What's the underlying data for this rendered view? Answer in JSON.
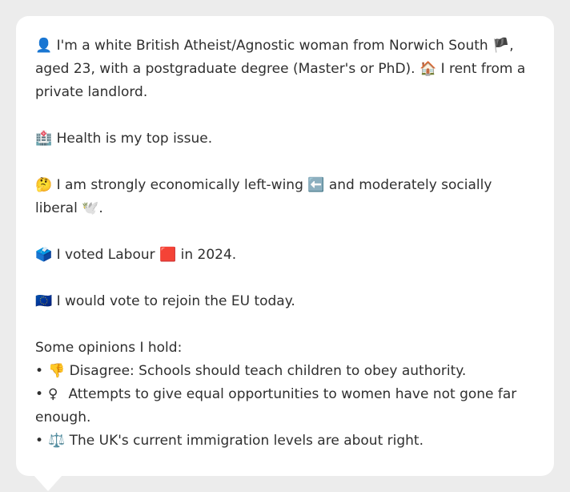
{
  "profile": {
    "intro_emoji": "👤",
    "intro_text_1": "I'm a white British Atheist/Agnostic woman from Norwich South",
    "flag_england": "🏴",
    "intro_text_2": ", aged 23, with a postgraduate degree (Master's or PhD).",
    "house_emoji": "🏠",
    "intro_text_3": "I rent from a private landlord."
  },
  "issue": {
    "emoji": "🏥",
    "text": "Health is my top issue."
  },
  "politics": {
    "emoji": "🤔",
    "text_1": "I am strongly economically left-wing",
    "arrow_emoji": "⬅️",
    "text_2": "and moderately socially liberal",
    "dove_emoji": "🕊️",
    "text_3": "."
  },
  "vote": {
    "emoji": "🗳️",
    "text_1": "I voted Labour",
    "party_emoji": "🟥",
    "text_2": "in 2024."
  },
  "eu": {
    "emoji": "🇪🇺",
    "text": "I would vote to rejoin the EU today."
  },
  "opinions": {
    "heading": "Some opinions I hold:",
    "bullet": "•",
    "items": [
      {
        "emoji": "👎",
        "text": "Disagree: Schools should teach children to obey authority."
      },
      {
        "emoji": "♀",
        "text": " Attempts to give equal opportunities to women have not gone far enough."
      },
      {
        "emoji": "⚖️",
        "text": "The UK's current immigration levels are about right."
      }
    ]
  }
}
